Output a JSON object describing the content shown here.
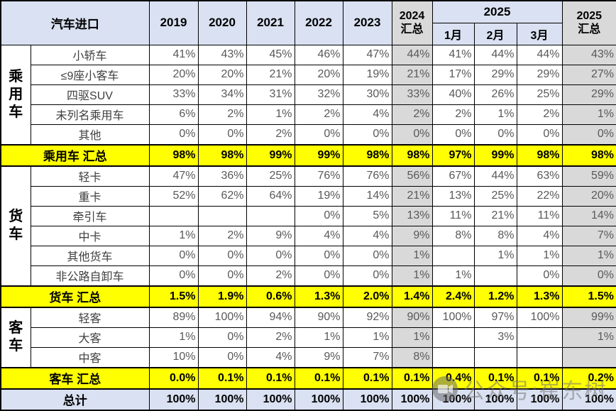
{
  "chart_data": {
    "type": "table",
    "title": "汽车进口",
    "header": {
      "title": "汽车进口",
      "years": [
        "2019",
        "2020",
        "2021",
        "2022",
        "2023"
      ],
      "col_2024_total_line1": "2024",
      "col_2024_total_line2": "汇总",
      "col_2025_group": "2025",
      "months": [
        "1月",
        "2月",
        "3月"
      ],
      "col_2025_total_line1": "2025",
      "col_2025_total_line2": "汇总"
    },
    "value_columns": [
      "2019",
      "2020",
      "2021",
      "2022",
      "2023",
      "2024汇总",
      "2025-1月",
      "2025-2月",
      "2025-3月",
      "2025汇总"
    ],
    "rows": [
      {
        "type": "data",
        "group": "乘用车",
        "group_span": 5,
        "label": "小轿车",
        "values": [
          "41%",
          "43%",
          "45%",
          "46%",
          "47%",
          "44%",
          "41%",
          "44%",
          "44%",
          "43%"
        ]
      },
      {
        "type": "data",
        "label": "≤9座小客车",
        "values": [
          "20%",
          "20%",
          "21%",
          "20%",
          "19%",
          "21%",
          "17%",
          "29%",
          "29%",
          "27%"
        ]
      },
      {
        "type": "data",
        "label": "四驱SUV",
        "values": [
          "33%",
          "34%",
          "31%",
          "32%",
          "30%",
          "33%",
          "40%",
          "26%",
          "25%",
          "29%"
        ]
      },
      {
        "type": "data",
        "label": "未列名乘用车",
        "values": [
          "6%",
          "2%",
          "1%",
          "2%",
          "4%",
          "2%",
          "2%",
          "1%",
          "2%",
          "1%"
        ]
      },
      {
        "type": "data",
        "label": "其他",
        "values": [
          "0%",
          "0%",
          "2%",
          "0%",
          "0%",
          "0%",
          "0%",
          "0%",
          "0%",
          "0%"
        ]
      },
      {
        "type": "subtotal",
        "label": "乘用车 汇总",
        "values": [
          "98%",
          "98%",
          "99%",
          "99%",
          "98%",
          "98%",
          "97%",
          "99%",
          "98%",
          "98%"
        ]
      },
      {
        "type": "data",
        "group": "货车",
        "group_span": 6,
        "label": "轻卡",
        "values": [
          "47%",
          "36%",
          "25%",
          "76%",
          "76%",
          "56%",
          "67%",
          "44%",
          "63%",
          "59%"
        ]
      },
      {
        "type": "data",
        "label": "重卡",
        "values": [
          "52%",
          "62%",
          "64%",
          "19%",
          "14%",
          "21%",
          "13%",
          "25%",
          "22%",
          "20%"
        ]
      },
      {
        "type": "data",
        "label": "牵引车",
        "values": [
          "",
          "",
          "",
          "0%",
          "5%",
          "13%",
          "11%",
          "21%",
          "11%",
          "14%"
        ]
      },
      {
        "type": "data",
        "label": "中卡",
        "values": [
          "1%",
          "2%",
          "9%",
          "4%",
          "4%",
          "9%",
          "8%",
          "8%",
          "4%",
          "7%"
        ]
      },
      {
        "type": "data",
        "label": "其他货车",
        "values": [
          "0%",
          "0%",
          "0%",
          "0%",
          "0%",
          "1%",
          "",
          "1%",
          "1%",
          "1%"
        ]
      },
      {
        "type": "data",
        "label": "非公路自卸车",
        "values": [
          "0%",
          "0%",
          "2%",
          "0%",
          "0%",
          "1%",
          "1%",
          "",
          "0%",
          "0%"
        ]
      },
      {
        "type": "subtotal",
        "label": "货车 汇总",
        "values": [
          "1.5%",
          "1.9%",
          "0.6%",
          "1.3%",
          "2.0%",
          "1.4%",
          "2.4%",
          "1.2%",
          "1.3%",
          "1.5%"
        ]
      },
      {
        "type": "data",
        "group": "客车",
        "group_span": 3,
        "label": "轻客",
        "values": [
          "89%",
          "100%",
          "94%",
          "90%",
          "92%",
          "90%",
          "100%",
          "97%",
          "100%",
          "99%"
        ]
      },
      {
        "type": "data",
        "label": "大客",
        "values": [
          "1%",
          "0%",
          "2%",
          "1%",
          "1%",
          "1%",
          "",
          "3%",
          "",
          "1%"
        ]
      },
      {
        "type": "data",
        "label": "中客",
        "values": [
          "10%",
          "0%",
          "4%",
          "9%",
          "7%",
          "8%",
          "",
          "",
          "",
          ""
        ]
      },
      {
        "type": "subtotal",
        "label": "客车 汇总",
        "values": [
          "0.0%",
          "0.1%",
          "0.1%",
          "0.1%",
          "0.1%",
          "0.1%",
          "0.4%",
          "0.1%",
          "0.1%",
          "0.2%"
        ]
      },
      {
        "type": "grand",
        "label": "总计",
        "values": [
          "100%",
          "100%",
          "100%",
          "100%",
          "100%",
          "100%",
          "100%",
          "100%",
          "100%",
          "100%"
        ]
      }
    ]
  },
  "watermark": {
    "text": "公众号:崔东树",
    "icon": "video-logo-icon"
  },
  "colors": {
    "header_bg": "#D9E1F2",
    "summary_col_bg": "#D9D9D9",
    "subtotal_bg": "#FFFF00",
    "border": "#000000"
  }
}
